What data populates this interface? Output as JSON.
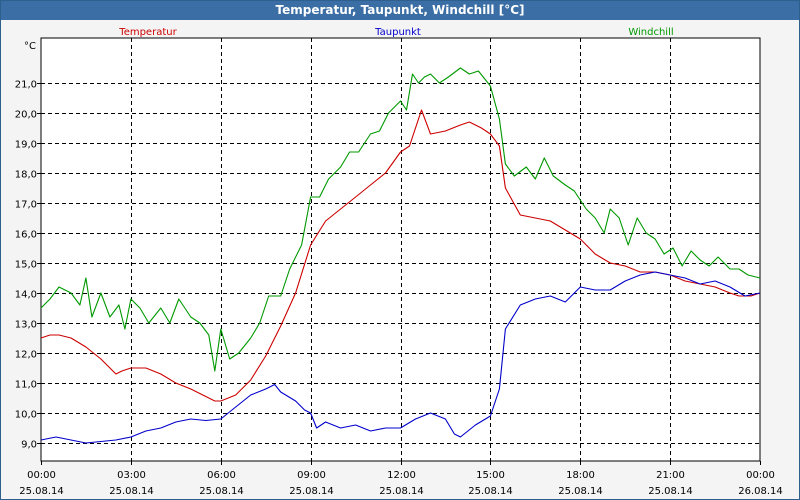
{
  "window": {
    "title": "Temperatur, Taupunkt, Windchill [°C]"
  },
  "chart_data": {
    "type": "line",
    "title": "Temperatur, Taupunkt, Windchill [°C]",
    "ylabel": "°C",
    "ylim": [
      8.4,
      22.5
    ],
    "xlim": [
      0,
      24
    ],
    "yticks": [
      9.0,
      10.0,
      11.0,
      12.0,
      13.0,
      14.0,
      15.0,
      16.0,
      17.0,
      18.0,
      19.0,
      20.0,
      21.0
    ],
    "ytick_labels": [
      "9,0",
      "10,0",
      "11,0",
      "12,0",
      "13,0",
      "14,0",
      "15,0",
      "16,0",
      "17,0",
      "18,0",
      "19,0",
      "20,0",
      "21,0"
    ],
    "xticks": [
      {
        "hour": 0,
        "time": "00:00",
        "date": "25.08.14"
      },
      {
        "hour": 3,
        "time": "03:00",
        "date": "25.08.14"
      },
      {
        "hour": 6,
        "time": "06:00",
        "date": "25.08.14"
      },
      {
        "hour": 9,
        "time": "09:00",
        "date": "25.08.14"
      },
      {
        "hour": 12,
        "time": "12:00",
        "date": "25.08.14"
      },
      {
        "hour": 15,
        "time": "15:00",
        "date": "25.08.14"
      },
      {
        "hour": 18,
        "time": "18:00",
        "date": "25.08.14"
      },
      {
        "hour": 21,
        "time": "21:00",
        "date": "25.08.14"
      },
      {
        "hour": 24,
        "time": "00:00",
        "date": "26.08.14"
      }
    ],
    "grid": true,
    "series": [
      {
        "name": "Temperatur",
        "color": "#cc0000",
        "x": [
          0,
          0.3,
          0.6,
          1.0,
          1.5,
          2.0,
          2.5,
          2.7,
          3.0,
          3.5,
          4.0,
          4.5,
          5.0,
          5.5,
          5.8,
          6.0,
          6.5,
          7.0,
          7.5,
          8.0,
          8.5,
          9.0,
          9.5,
          10.0,
          10.5,
          11.0,
          11.5,
          12.0,
          12.3,
          12.5,
          12.7,
          13.0,
          13.5,
          14.0,
          14.3,
          14.7,
          15.0,
          15.3,
          15.5,
          16.0,
          16.5,
          17.0,
          17.5,
          18.0,
          18.5,
          19.0,
          19.5,
          20.0,
          20.5,
          21.0,
          21.5,
          22.0,
          22.5,
          23.0,
          23.3,
          23.7,
          24.0
        ],
        "values": [
          12.5,
          12.6,
          12.6,
          12.5,
          12.2,
          11.8,
          11.3,
          11.4,
          11.5,
          11.5,
          11.3,
          11.0,
          10.8,
          10.55,
          10.4,
          10.4,
          10.6,
          11.1,
          11.9,
          12.9,
          14.0,
          15.6,
          16.4,
          16.8,
          17.2,
          17.6,
          18.0,
          18.7,
          18.9,
          19.5,
          20.1,
          19.3,
          19.4,
          19.6,
          19.7,
          19.5,
          19.3,
          18.9,
          17.5,
          16.6,
          16.5,
          16.4,
          16.1,
          15.8,
          15.3,
          15.0,
          14.9,
          14.7,
          14.7,
          14.6,
          14.4,
          14.3,
          14.2,
          14.0,
          13.9,
          13.9,
          14.0
        ]
      },
      {
        "name": "Taupunkt",
        "color": "#0000cc",
        "x": [
          0,
          0.5,
          1.0,
          1.5,
          2.0,
          2.5,
          3.0,
          3.5,
          4.0,
          4.5,
          5.0,
          5.5,
          6.0,
          6.5,
          7.0,
          7.5,
          7.8,
          8.0,
          8.5,
          8.8,
          9.0,
          9.2,
          9.5,
          10.0,
          10.5,
          11.0,
          11.5,
          12.0,
          12.5,
          13.0,
          13.5,
          13.8,
          14.0,
          14.5,
          15.0,
          15.3,
          15.5,
          16.0,
          16.5,
          17.0,
          17.5,
          18.0,
          18.5,
          19.0,
          19.5,
          20.0,
          20.5,
          21.0,
          21.5,
          22.0,
          22.5,
          23.0,
          23.5,
          24.0
        ],
        "values": [
          9.1,
          9.2,
          9.1,
          9.0,
          9.05,
          9.1,
          9.2,
          9.4,
          9.5,
          9.7,
          9.8,
          9.75,
          9.8,
          10.2,
          10.6,
          10.8,
          10.95,
          10.7,
          10.4,
          10.1,
          10.0,
          9.5,
          9.7,
          9.5,
          9.6,
          9.4,
          9.5,
          9.5,
          9.8,
          10.0,
          9.8,
          9.3,
          9.2,
          9.6,
          9.9,
          10.8,
          12.8,
          13.6,
          13.8,
          13.9,
          13.7,
          14.2,
          14.1,
          14.1,
          14.4,
          14.6,
          14.7,
          14.6,
          14.5,
          14.3,
          14.4,
          14.2,
          13.9,
          14.0
        ]
      },
      {
        "name": "Windchill",
        "color": "#009900",
        "x": [
          0,
          0.3,
          0.6,
          1.0,
          1.3,
          1.5,
          1.7,
          2.0,
          2.3,
          2.6,
          2.8,
          3.0,
          3.3,
          3.6,
          4.0,
          4.3,
          4.6,
          5.0,
          5.3,
          5.6,
          5.8,
          6.0,
          6.3,
          6.6,
          7.0,
          7.3,
          7.6,
          8.0,
          8.3,
          8.7,
          9.0,
          9.3,
          9.6,
          10.0,
          10.3,
          10.6,
          11.0,
          11.3,
          11.6,
          12.0,
          12.2,
          12.4,
          12.6,
          12.8,
          13.0,
          13.3,
          13.6,
          14.0,
          14.3,
          14.6,
          15.0,
          15.3,
          15.5,
          15.8,
          16.2,
          16.5,
          16.8,
          17.1,
          17.5,
          17.8,
          18.2,
          18.5,
          18.8,
          19.0,
          19.3,
          19.6,
          19.9,
          20.2,
          20.5,
          20.8,
          21.1,
          21.4,
          21.7,
          22.0,
          22.3,
          22.6,
          23.0,
          23.3,
          23.6,
          24.0
        ],
        "values": [
          13.5,
          13.8,
          14.2,
          14.0,
          13.6,
          14.5,
          13.2,
          14.0,
          13.2,
          13.6,
          12.8,
          13.8,
          13.5,
          13.0,
          13.5,
          13.0,
          13.8,
          13.2,
          13.0,
          12.6,
          11.4,
          12.8,
          11.8,
          12.0,
          12.5,
          13.0,
          13.9,
          13.9,
          14.8,
          15.6,
          17.2,
          17.2,
          17.8,
          18.2,
          18.7,
          18.7,
          19.3,
          19.4,
          20.0,
          20.4,
          20.1,
          21.3,
          21.0,
          21.2,
          21.3,
          21.0,
          21.2,
          21.5,
          21.3,
          21.4,
          20.9,
          19.8,
          18.3,
          17.9,
          18.2,
          17.8,
          18.5,
          17.9,
          17.6,
          17.4,
          16.8,
          16.5,
          16.0,
          16.8,
          16.5,
          15.6,
          16.5,
          16.0,
          15.8,
          15.3,
          15.5,
          14.9,
          15.4,
          15.1,
          14.9,
          15.2,
          14.8,
          14.8,
          14.6,
          14.5
        ]
      }
    ]
  }
}
